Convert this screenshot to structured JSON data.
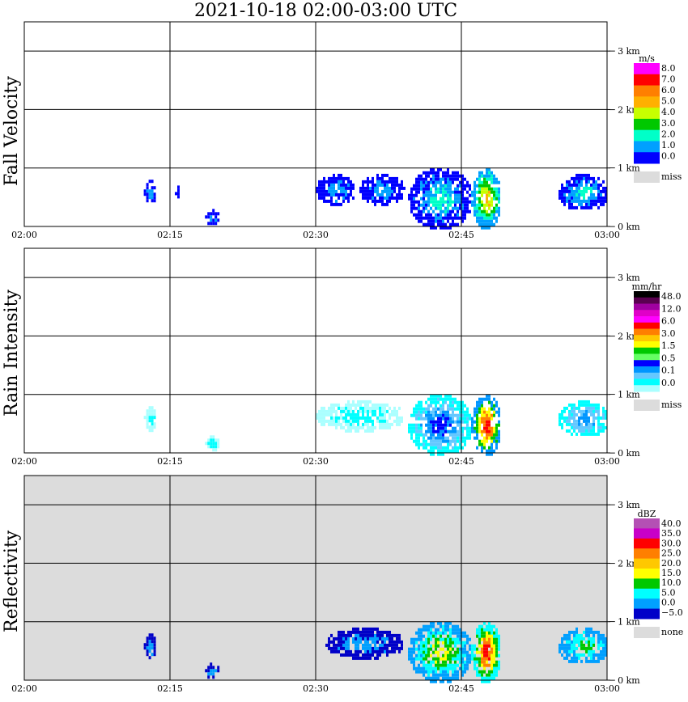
{
  "title": "2021-10-18   02:00-03:00 UTC",
  "colors": {
    "panel_bg": "#ffffff",
    "missing_bg": "#dcdcdc",
    "grid": "#000000"
  },
  "chart_data": [
    {
      "type": "heatmap",
      "name": "Fall Velocity",
      "ylabel": "Fall Velocity",
      "x_ticks": [
        "02:00",
        "02:15",
        "02:30",
        "02:45",
        "03:00"
      ],
      "x_range_minutes": [
        0,
        60
      ],
      "y_ticks": [
        "0 km",
        "1 km",
        "2 km",
        "3 km"
      ],
      "y_range_km": [
        0,
        3.5
      ],
      "grid": true,
      "background": "white",
      "legend": {
        "unit": "m/s",
        "labels": [
          "8.0",
          "7.0",
          "6.0",
          "5.0",
          "4.0",
          "3.0",
          "2.0",
          "1.0",
          "0.0"
        ],
        "colors": [
          "#ff00ff",
          "#ff0000",
          "#ff7f00",
          "#ffb000",
          "#c8ff00",
          "#00c800",
          "#00ffc8",
          "#00a0ff",
          "#0000ff"
        ],
        "missing_label": "miss"
      },
      "echoes": [
        {
          "t": [
            12.3,
            13.5
          ],
          "h": [
            0.4,
            0.8
          ],
          "cmap": [
            "#0000ff",
            "#00a0ff"
          ]
        },
        {
          "t": [
            15.5,
            16.0
          ],
          "h": [
            0.5,
            0.7
          ],
          "cmap": [
            "#0000ff"
          ]
        },
        {
          "t": [
            18.6,
            20.0
          ],
          "h": [
            0.05,
            0.3
          ],
          "cmap": [
            "#0000ff",
            "#00a0ff"
          ]
        },
        {
          "t": [
            30.0,
            34.0
          ],
          "h": [
            0.4,
            0.9
          ],
          "cmap": [
            "#0000ff",
            "#00a0ff"
          ]
        },
        {
          "t": [
            34.5,
            39.0
          ],
          "h": [
            0.4,
            0.9
          ],
          "cmap": [
            "#0000ff",
            "#00a0ff"
          ]
        },
        {
          "t": [
            39.5,
            46.0
          ],
          "h": [
            0.0,
            1.0
          ],
          "cmap": [
            "#0000ff",
            "#00a0ff",
            "#00ffc8"
          ]
        },
        {
          "t": [
            46.0,
            49.0
          ],
          "h": [
            0.0,
            1.0
          ],
          "cmap": [
            "#00a0ff",
            "#00ffc8",
            "#00c800",
            "#c8ff00",
            "#ffb000"
          ]
        },
        {
          "t": [
            55.0,
            60.0
          ],
          "h": [
            0.3,
            0.9
          ],
          "cmap": [
            "#0000ff",
            "#00a0ff",
            "#00ffc8"
          ]
        }
      ]
    },
    {
      "type": "heatmap",
      "name": "Rain Intensity",
      "ylabel": "Rain Intensity",
      "x_ticks": [
        "02:00",
        "02:15",
        "02:30",
        "02:45",
        "03:00"
      ],
      "x_range_minutes": [
        0,
        60
      ],
      "y_ticks": [
        "0 km",
        "1 km",
        "2 km",
        "3 km"
      ],
      "y_range_km": [
        0,
        3.5
      ],
      "grid": true,
      "background": "white",
      "legend": {
        "unit": "mm/hr",
        "labels": [
          "48.0",
          "12.0",
          "6.0",
          "3.0",
          "1.5",
          "0.5",
          "0.1",
          "0.0"
        ],
        "colors": [
          "#000000",
          "#5a0050",
          "#a000a0",
          "#e000c8",
          "#ff00ff",
          "#ff0000",
          "#ff7f00",
          "#ffc800",
          "#ffff00",
          "#00c800",
          "#64ff64",
          "#0000ff",
          "#0096ff",
          "#64c8ff",
          "#00ffff",
          "#aaffff"
        ],
        "missing_label": "miss"
      },
      "echoes": [
        {
          "t": [
            12.3,
            13.5
          ],
          "h": [
            0.4,
            0.8
          ],
          "cmap": [
            "#aaffff",
            "#00ffff"
          ]
        },
        {
          "t": [
            18.6,
            20.0
          ],
          "h": [
            0.05,
            0.3
          ],
          "cmap": [
            "#aaffff",
            "#00ffff"
          ]
        },
        {
          "t": [
            30.0,
            39.0
          ],
          "h": [
            0.4,
            0.9
          ],
          "cmap": [
            "#aaffff",
            "#00ffff"
          ]
        },
        {
          "t": [
            39.5,
            46.0
          ],
          "h": [
            0.0,
            1.0
          ],
          "cmap": [
            "#00ffff",
            "#64c8ff",
            "#0096ff",
            "#0000ff"
          ]
        },
        {
          "t": [
            46.0,
            49.0
          ],
          "h": [
            0.0,
            1.0
          ],
          "cmap": [
            "#0096ff",
            "#00c800",
            "#ffff00",
            "#ff7f00",
            "#ff0000"
          ]
        },
        {
          "t": [
            55.0,
            60.0
          ],
          "h": [
            0.3,
            0.9
          ],
          "cmap": [
            "#00ffff",
            "#64c8ff",
            "#0096ff"
          ]
        }
      ]
    },
    {
      "type": "heatmap",
      "name": "Reflectivity",
      "ylabel": "Reflectivity",
      "x_ticks": [
        "02:00",
        "02:15",
        "02:30",
        "02:45",
        "03:00"
      ],
      "x_range_minutes": [
        0,
        60
      ],
      "y_ticks": [
        "0 km",
        "1 km",
        "2 km",
        "3 km"
      ],
      "y_range_km": [
        0,
        3.5
      ],
      "grid": true,
      "background": "missing",
      "legend": {
        "unit": "dBZ",
        "labels": [
          "40.0",
          "35.0",
          "30.0",
          "25.0",
          "20.0",
          "15.0",
          "10.0",
          "5.0",
          "0.0",
          "−5.0"
        ],
        "colors": [
          "#b450b4",
          "#c800c8",
          "#ff0000",
          "#ff7f00",
          "#ffc800",
          "#ffff00",
          "#00c800",
          "#00ffff",
          "#00a0ff",
          "#0000c8"
        ],
        "missing_label": "none"
      },
      "echoes": [
        {
          "t": [
            12.3,
            13.5
          ],
          "h": [
            0.4,
            0.8
          ],
          "cmap": [
            "#0000c8",
            "#00a0ff"
          ]
        },
        {
          "t": [
            18.6,
            20.0
          ],
          "h": [
            0.05,
            0.3
          ],
          "cmap": [
            "#0000c8",
            "#00a0ff"
          ]
        },
        {
          "t": [
            31.0,
            39.0
          ],
          "h": [
            0.4,
            0.9
          ],
          "cmap": [
            "#0000c8",
            "#00a0ff"
          ]
        },
        {
          "t": [
            39.5,
            46.0
          ],
          "h": [
            0.0,
            1.0
          ],
          "cmap": [
            "#00a0ff",
            "#00ffff",
            "#00c800",
            "#ffff00"
          ]
        },
        {
          "t": [
            46.0,
            49.0
          ],
          "h": [
            0.0,
            1.0
          ],
          "cmap": [
            "#00ffff",
            "#00c800",
            "#ffff00",
            "#ff7f00",
            "#ff0000"
          ]
        },
        {
          "t": [
            55.0,
            60.0
          ],
          "h": [
            0.3,
            0.9
          ],
          "cmap": [
            "#00a0ff",
            "#00ffff",
            "#00c800"
          ]
        }
      ]
    }
  ]
}
